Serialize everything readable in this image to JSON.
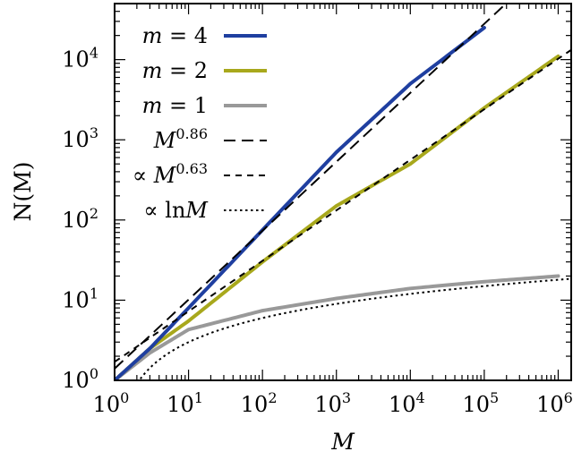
{
  "chart_data": {
    "type": "line",
    "xlabel": "M",
    "ylabel": "N(M)",
    "x_scale": "log",
    "y_scale": "log",
    "xlim": [
      1,
      1500000
    ],
    "ylim": [
      1,
      50000
    ],
    "x_ticks": [
      {
        "base": "10",
        "exp": "0"
      },
      {
        "base": "10",
        "exp": "1"
      },
      {
        "base": "10",
        "exp": "2"
      },
      {
        "base": "10",
        "exp": "3"
      },
      {
        "base": "10",
        "exp": "4"
      },
      {
        "base": "10",
        "exp": "5"
      },
      {
        "base": "10",
        "exp": "6"
      }
    ],
    "y_ticks": [
      {
        "base": "10",
        "exp": "0"
      },
      {
        "base": "10",
        "exp": "1"
      },
      {
        "base": "10",
        "exp": "2"
      },
      {
        "base": "10",
        "exp": "3"
      },
      {
        "base": "10",
        "exp": "4"
      }
    ],
    "legend_position": "top-left",
    "series": [
      {
        "name": "m = 4",
        "legend_parts": [
          {
            "t": "m",
            "i": true
          },
          {
            "t": " = 4",
            "i": false
          }
        ],
        "color": "#1f3fa0",
        "style": "solid-thick",
        "x": [
          1,
          3,
          10,
          100,
          1000,
          10000,
          100000
        ],
        "y": [
          1,
          2.5,
          8,
          75,
          700,
          5000,
          25000
        ]
      },
      {
        "name": "m = 2",
        "legend_parts": [
          {
            "t": "m",
            "i": true
          },
          {
            "t": " = 2",
            "i": false
          }
        ],
        "color": "#a8a81c",
        "style": "solid-thick",
        "x": [
          1,
          3,
          10,
          100,
          1000,
          10000,
          100000,
          1000000
        ],
        "y": [
          1,
          2.5,
          5.5,
          30,
          150,
          500,
          2500,
          11000
        ]
      },
      {
        "name": "m = 1",
        "legend_parts": [
          {
            "t": "m",
            "i": true
          },
          {
            "t": " = 1",
            "i": false
          }
        ],
        "color": "#999999",
        "style": "solid-thick",
        "x": [
          1,
          3,
          10,
          100,
          1000,
          10000,
          100000,
          1000000
        ],
        "y": [
          1,
          2.2,
          4.3,
          7.4,
          10.5,
          14,
          17,
          20
        ]
      },
      {
        "name": "M^0.86",
        "legend_parts": [
          {
            "t": "M",
            "i": true
          },
          {
            "t": "0.86",
            "sup": true
          }
        ],
        "color": "#000000",
        "style": "long-dash",
        "fn": "power",
        "coef": 1.4,
        "exponent": 0.86,
        "x_range": [
          1,
          1500000
        ]
      },
      {
        "name": "∝ M^0.63",
        "legend_parts": [
          {
            "t": "∝ ",
            "i": false
          },
          {
            "t": "M",
            "i": true
          },
          {
            "t": "0.63",
            "sup": true
          }
        ],
        "color": "#000000",
        "style": "short-dash",
        "fn": "power",
        "coef": 1.7,
        "exponent": 0.63,
        "x_range": [
          1,
          1500000
        ]
      },
      {
        "name": "∝ ln M",
        "legend_parts": [
          {
            "t": "∝ ln",
            "i": false
          },
          {
            "t": "M",
            "i": true
          }
        ],
        "color": "#000000",
        "style": "dotted",
        "fn": "log",
        "coef": 1.3,
        "x_range": [
          1.3,
          1500000
        ]
      }
    ]
  }
}
